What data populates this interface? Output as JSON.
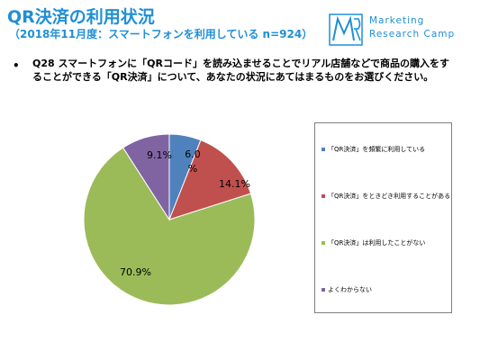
{
  "header": {
    "title": "QR決済の利用状況",
    "subtitle": "（2018年11月度：スマートフォンを利用している n=924）"
  },
  "logo": {
    "mark_text": "MR",
    "line1": "Marketing",
    "line2": "Research Camp"
  },
  "question": {
    "bullet": "•",
    "text": "Q28 スマートフォンに「QRコード」を読み込ませることでリアル店舗などで商品の購入をすることができる「QR決済」について、あなたの状況にあてはまるものをお選びください。"
  },
  "colors": {
    "brand": "#1f8fd6",
    "border": "#7f7f7f"
  },
  "chart_data": {
    "type": "pie",
    "unit": "%",
    "slices": [
      {
        "label": "「QR決済」を頻繁に利用している",
        "value": 6.0,
        "display": "6.0%",
        "color": "#4f81bd"
      },
      {
        "label": "「QR決済」をときどき利用することがある",
        "value": 14.1,
        "display": "14.1%",
        "color": "#c0504d"
      },
      {
        "label": "「QR決済」は利用したことがない",
        "value": 70.9,
        "display": "70.9%",
        "color": "#9bbb59"
      },
      {
        "label": "よくわからない",
        "value": 9.1,
        "display": "9.1%",
        "color": "#8064a2"
      }
    ],
    "start_angle_deg": 0,
    "direction": "clockwise",
    "legend_position": "right"
  }
}
